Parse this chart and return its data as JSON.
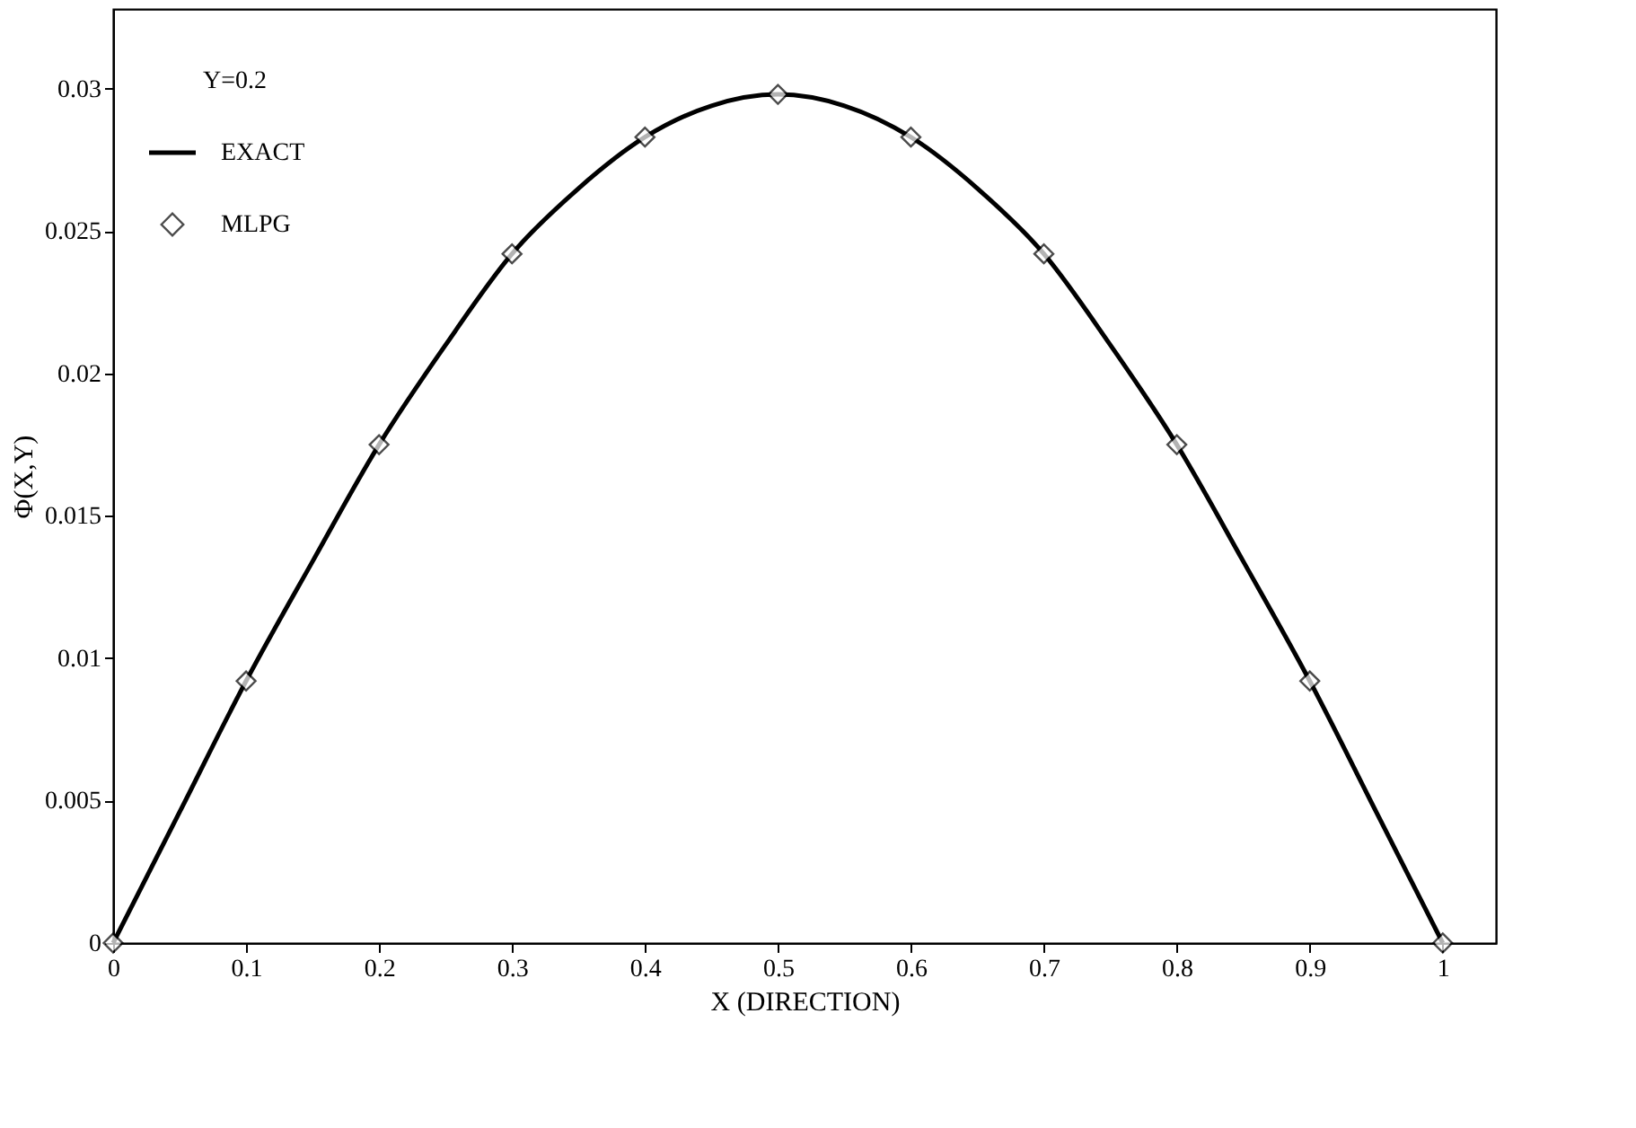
{
  "chart_data": {
    "type": "line",
    "xlabel": "X (DIRECTION)",
    "ylabel": "Φ(X,Y)",
    "legend_title": "Y=0.2",
    "xlim": [
      0,
      1.04
    ],
    "xticks": [
      0,
      0.1,
      0.2,
      0.3,
      0.4,
      0.5,
      0.6,
      0.7,
      0.8,
      0.9,
      1
    ],
    "ylim": [
      0,
      0.0328
    ],
    "yticks": [
      0,
      0.005,
      0.01,
      0.015,
      0.02,
      0.025,
      0.03
    ],
    "grid": false,
    "legend": "top left",
    "series": [
      {
        "name": "EXACT",
        "type": "line",
        "color": "#000000",
        "marker": "none",
        "line_style": "solid",
        "x": [
          0,
          0.05,
          0.1,
          0.15,
          0.2,
          0.25,
          0.3,
          0.35,
          0.4,
          0.45,
          0.5,
          0.55,
          0.6,
          0.65,
          0.7,
          0.75,
          0.8,
          0.85,
          0.9,
          0.95,
          1
        ],
        "values": [
          0,
          0.0046,
          0.0092,
          0.0134,
          0.0175,
          0.021,
          0.0242,
          0.0265,
          0.0283,
          0.0294,
          0.0298,
          0.0294,
          0.0283,
          0.0265,
          0.0242,
          0.021,
          0.0175,
          0.0134,
          0.0092,
          0.0046,
          0
        ]
      },
      {
        "name": "MLPG",
        "type": "scatter",
        "color": "#000000",
        "marker": "diamond",
        "x": [
          0,
          0.1,
          0.2,
          0.3,
          0.4,
          0.5,
          0.6,
          0.7,
          0.8,
          0.9,
          1
        ],
        "values": [
          0,
          0.0092,
          0.0175,
          0.0242,
          0.0283,
          0.0298,
          0.0283,
          0.0242,
          0.0175,
          0.0092,
          0
        ]
      }
    ]
  }
}
